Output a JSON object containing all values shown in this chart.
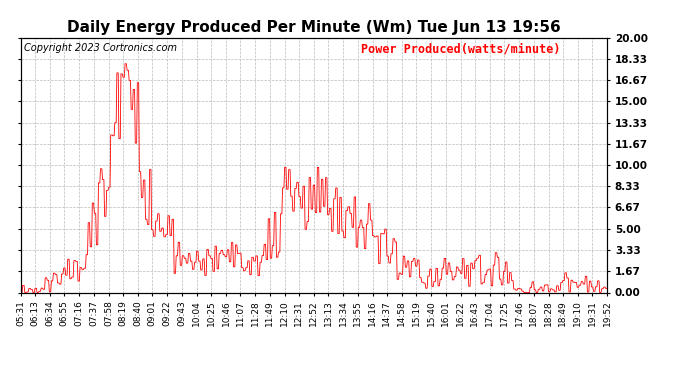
{
  "title": "Daily Energy Produced Per Minute (Wm) Tue Jun 13 19:56",
  "copyright": "Copyright 2023 Cortronics.com",
  "legend_label": "Power Produced(watts/minute)",
  "ymin": 0.0,
  "ymax": 20.0,
  "ytick_values": [
    0.0,
    1.67,
    3.33,
    5.0,
    6.67,
    8.33,
    10.0,
    11.67,
    13.33,
    15.0,
    16.67,
    18.33,
    20.0
  ],
  "line_color": "red",
  "bg_color": "white",
  "grid_color": "#bbbbbb",
  "title_fontsize": 11,
  "copyright_fontsize": 7,
  "legend_fontsize": 8.5,
  "tick_fontsize": 6.5,
  "xtick_labels": [
    "05:31",
    "06:13",
    "06:34",
    "06:55",
    "07:16",
    "07:37",
    "07:58",
    "08:19",
    "08:40",
    "09:01",
    "09:22",
    "09:43",
    "10:04",
    "10:25",
    "10:46",
    "11:07",
    "11:28",
    "11:49",
    "12:10",
    "12:31",
    "12:52",
    "13:13",
    "13:34",
    "13:55",
    "14:16",
    "14:37",
    "14:58",
    "15:19",
    "15:40",
    "16:01",
    "16:22",
    "16:43",
    "17:04",
    "17:25",
    "17:46",
    "18:07",
    "18:28",
    "18:49",
    "19:10",
    "19:31",
    "19:52"
  ],
  "seed": 42,
  "n_points": 861
}
